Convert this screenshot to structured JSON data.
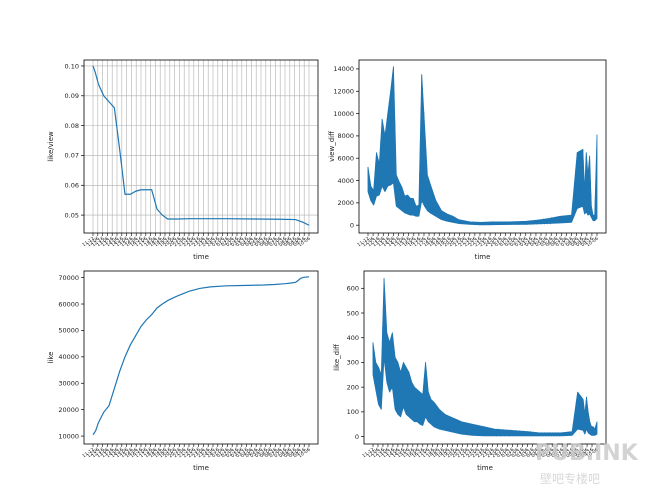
{
  "chart_data": [
    {
      "id": "like_view",
      "type": "line",
      "xlabel": "time",
      "ylabel": "like/view",
      "ylim": [
        0.044,
        0.102
      ],
      "yticks": [
        0.05,
        0.06,
        0.07,
        0.08,
        0.09,
        0.1
      ],
      "ytick_labels": [
        "0.05",
        "0.06",
        "0.07",
        "0.08",
        "0.09",
        "0.10"
      ],
      "grid": true,
      "x": [
        0,
        0.4,
        1,
        2,
        3,
        4,
        5,
        6,
        7,
        8,
        9,
        10,
        11,
        12,
        13,
        14,
        16,
        18,
        20,
        25,
        30,
        35,
        38,
        39.5,
        40.5
      ],
      "values": [
        0.1,
        0.098,
        0.094,
        0.09,
        0.088,
        0.086,
        0.072,
        0.057,
        0.057,
        0.058,
        0.0585,
        0.0585,
        0.0585,
        0.052,
        0.05,
        0.0487,
        0.0487,
        0.0488,
        0.0488,
        0.0488,
        0.0487,
        0.0486,
        0.0485,
        0.0475,
        0.0466
      ]
    },
    {
      "id": "view_diff",
      "type": "line",
      "xlabel": "time",
      "ylabel": "view_diff",
      "ylim": [
        -700,
        14800
      ],
      "yticks": [
        0,
        2000,
        4000,
        6000,
        8000,
        10000,
        12000,
        14000
      ],
      "ytick_labels": [
        "0",
        "2000",
        "4000",
        "6000",
        "8000",
        "10000",
        "12000",
        "14000"
      ],
      "grid": false,
      "band_x": [
        0,
        0.5,
        1,
        1.5,
        2,
        2.5,
        3,
        3.5,
        4,
        4.5,
        5,
        5.5,
        6,
        6.5,
        7,
        7.5,
        8,
        8.5,
        9,
        9.5,
        10,
        10.5,
        11,
        12,
        13,
        14,
        15,
        16,
        18,
        20,
        22,
        25,
        28,
        30,
        32,
        34,
        36,
        37,
        38,
        38.3,
        38.6,
        38.9,
        39.2,
        39.5,
        39.8,
        40.1,
        40.5
      ],
      "band_high": [
        5200,
        3500,
        3100,
        6500,
        5500,
        9500,
        8000,
        10000,
        12000,
        14200,
        4500,
        3900,
        3400,
        2600,
        2700,
        2400,
        2400,
        1700,
        1800,
        13500,
        9000,
        4500,
        3700,
        2200,
        1300,
        1000,
        800,
        500,
        300,
        250,
        300,
        300,
        350,
        450,
        600,
        800,
        900,
        6500,
        6800,
        3000,
        6500,
        4500,
        6200,
        1700,
        900,
        900,
        8100
      ],
      "band_low": [
        3000,
        2200,
        1800,
        2600,
        2700,
        3500,
        3000,
        3500,
        3600,
        3800,
        1700,
        1500,
        1300,
        1100,
        1000,
        900,
        900,
        800,
        800,
        2200,
        1700,
        1300,
        1100,
        800,
        500,
        350,
        250,
        150,
        80,
        30,
        40,
        60,
        80,
        120,
        150,
        200,
        250,
        1500,
        1700,
        1000,
        1200,
        900,
        1000,
        700,
        400,
        400,
        600
      ]
    },
    {
      "id": "like",
      "type": "line",
      "xlabel": "time",
      "ylabel": "like",
      "ylim": [
        7000,
        72500
      ],
      "yticks": [
        10000,
        20000,
        30000,
        40000,
        50000,
        60000,
        70000
      ],
      "ytick_labels": [
        "10000",
        "20000",
        "30000",
        "40000",
        "50000",
        "60000",
        "70000"
      ],
      "grid": false,
      "x": [
        0,
        0.5,
        1,
        2,
        3,
        4,
        5,
        6,
        7,
        8,
        9,
        10,
        11,
        12,
        13,
        14,
        15,
        16,
        18,
        20,
        22,
        25,
        28,
        30,
        32,
        34,
        36,
        37,
        38,
        38.5,
        39,
        39.5,
        40,
        40.5
      ],
      "values": [
        10500,
        12000,
        15000,
        19000,
        21500,
        28000,
        34500,
        40000,
        44500,
        48000,
        51500,
        54000,
        56000,
        58500,
        60000,
        61300,
        62300,
        63200,
        64800,
        65900,
        66500,
        66900,
        67000,
        67100,
        67200,
        67400,
        67700,
        67900,
        68200,
        69000,
        69800,
        70100,
        70200,
        70300
      ]
    },
    {
      "id": "like_diff",
      "type": "line",
      "xlabel": "time",
      "ylabel": "like_diff",
      "ylim": [
        -30,
        670
      ],
      "yticks": [
        0,
        100,
        200,
        300,
        400,
        500,
        600
      ],
      "ytick_labels": [
        "0",
        "100",
        "200",
        "300",
        "400",
        "500",
        "600"
      ],
      "grid": false,
      "band_x": [
        0,
        0.5,
        1,
        1.5,
        2,
        2.5,
        3,
        3.5,
        4,
        4.5,
        5,
        5.5,
        6,
        6.5,
        7,
        7.5,
        8,
        8.5,
        9,
        9.5,
        10,
        10.5,
        11,
        12,
        13,
        14,
        15,
        16,
        18,
        20,
        22,
        25,
        28,
        30,
        32,
        34,
        36,
        37,
        38,
        38.3,
        38.6,
        38.9,
        39.2,
        39.5,
        39.8,
        40.1,
        40.5
      ],
      "band_high": [
        380,
        300,
        280,
        250,
        640,
        420,
        380,
        420,
        320,
        300,
        260,
        300,
        280,
        260,
        220,
        200,
        190,
        180,
        170,
        300,
        180,
        150,
        140,
        110,
        90,
        80,
        70,
        60,
        50,
        40,
        30,
        25,
        20,
        15,
        15,
        15,
        20,
        180,
        150,
        90,
        160,
        100,
        60,
        40,
        40,
        30,
        60
      ],
      "band_low": [
        250,
        190,
        130,
        110,
        320,
        220,
        180,
        200,
        110,
        90,
        80,
        120,
        90,
        80,
        70,
        60,
        60,
        50,
        45,
        80,
        60,
        50,
        40,
        30,
        25,
        20,
        15,
        10,
        5,
        3,
        3,
        3,
        3,
        3,
        3,
        3,
        5,
        30,
        25,
        10,
        30,
        15,
        10,
        5,
        5,
        5,
        10
      ]
    }
  ],
  "x_tick_labels": [
    "11-12",
    "12-06",
    "12-16",
    "13-06",
    "13-16",
    "14-06",
    "14-16",
    "15-06",
    "15-16",
    "16-06",
    "16-16",
    "17-06",
    "17-16",
    "18-06",
    "18-16",
    "19-06",
    "19-16",
    "20-06",
    "20-16",
    "21-06",
    "21-16",
    "22-06",
    "22-16",
    "23-06",
    "23-16",
    "24-06",
    "24-16",
    "01-06",
    "01-16",
    "02-06",
    "02-16",
    "03-06",
    "03-16",
    "04-06",
    "04-16",
    "05-06",
    "05-16",
    "06-06",
    "06-16",
    "07-06",
    "07-16",
    "08-06",
    "08-16",
    "09-06",
    "09-16",
    "10-06"
  ],
  "watermark": {
    "main": "PUB.INK",
    "sub": "壁吧专楼吧"
  }
}
